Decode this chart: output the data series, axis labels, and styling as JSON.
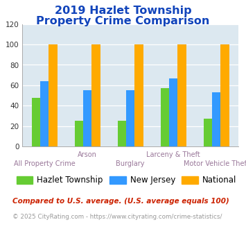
{
  "title_line1": "2019 Hazlet Township",
  "title_line2": "Property Crime Comparison",
  "categories": [
    "All Property Crime",
    "Arson",
    "Burglary",
    "Larceny & Theft",
    "Motor Vehicle Theft"
  ],
  "series": {
    "Hazlet Township": [
      48,
      25,
      25,
      57,
      27
    ],
    "New Jersey": [
      64,
      55,
      55,
      67,
      53
    ],
    "National": [
      100,
      100,
      100,
      100,
      100
    ]
  },
  "colors": {
    "Hazlet Township": "#66cc33",
    "New Jersey": "#3399ff",
    "National": "#ffaa00"
  },
  "ylim": [
    0,
    120
  ],
  "yticks": [
    0,
    20,
    40,
    60,
    80,
    100,
    120
  ],
  "title_color": "#1144bb",
  "axis_label_color": "#997799",
  "legend_fontsize": 8.5,
  "title_fontsize": 11.5,
  "footnote1": "Compared to U.S. average. (U.S. average equals 100)",
  "footnote2": "© 2025 CityRating.com - https://www.cityrating.com/crime-statistics/",
  "footnote1_color": "#cc2200",
  "footnote2_color": "#999999",
  "plot_bg_color": "#dce8f0"
}
